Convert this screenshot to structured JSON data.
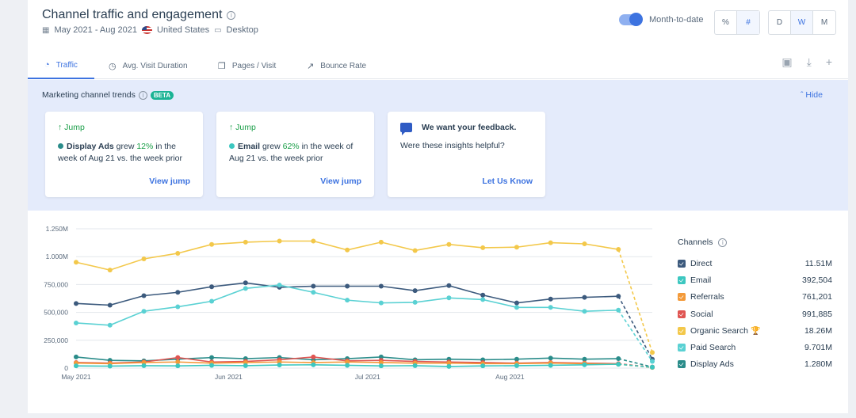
{
  "header": {
    "title": "Channel traffic and engagement",
    "date_range": "May 2021 - Aug 2021",
    "country": "United States",
    "device": "Desktop",
    "toggle_label": "Month-to-date",
    "units": [
      "%",
      "#"
    ],
    "active_unit": "#",
    "granularity": [
      "D",
      "W",
      "M"
    ],
    "active_granularity": "W"
  },
  "tabs": [
    {
      "label": "Traffic",
      "icon": "pie-chart-icon"
    },
    {
      "label": "Avg. Visit Duration",
      "icon": "clock-icon"
    },
    {
      "label": "Pages / Visit",
      "icon": "pages-icon"
    },
    {
      "label": "Bounce Rate",
      "icon": "bounce-icon"
    }
  ],
  "insights": {
    "title": "Marketing channel trends",
    "badge": "BETA",
    "hide_label": "Hide",
    "cards": [
      {
        "type": "Jump",
        "channel": "Display Ads",
        "verb": "grew",
        "pct": "12%",
        "rest": "in the week of Aug 21 vs. the week prior",
        "link": "View jump",
        "color": "#2a8c8a"
      },
      {
        "type": "Jump",
        "channel": "Email",
        "verb": "grew",
        "pct": "62%",
        "rest": "in the week of Aug 21 vs. the week prior",
        "link": "View jump",
        "color": "#3cc7c0"
      }
    ],
    "feedback": {
      "title": "We want your feedback.",
      "question": "Were these insights helpful?",
      "link": "Let Us Know"
    }
  },
  "legend": {
    "title": "Channels",
    "items": [
      {
        "name": "Direct",
        "value": "11.51M",
        "color": "#3c5a7d"
      },
      {
        "name": "Email",
        "value": "392,504",
        "color": "#3cc7c0"
      },
      {
        "name": "Referrals",
        "value": "761,201",
        "color": "#f39a3a"
      },
      {
        "name": "Social",
        "value": "991,885",
        "color": "#e05552"
      },
      {
        "name": "Organic Search",
        "value": "18.26M",
        "color": "#f3c84a"
      },
      {
        "name": "Paid Search",
        "value": "9.701M",
        "color": "#5ad1d3"
      },
      {
        "name": "Display Ads",
        "value": "1.280M",
        "color": "#2a8c8a"
      }
    ]
  },
  "chart_data": {
    "type": "line",
    "y_ticks": [
      "0",
      "250,000",
      "500,000",
      "750,000",
      "1.000M",
      "1.250M"
    ],
    "ylim": [
      0,
      1250000
    ],
    "x_labels": [
      "May 2021",
      "Jun 2021",
      "Jul 2021",
      "Aug 2021"
    ],
    "x_label_weeks": [
      0,
      4.5,
      8.6,
      12.8
    ],
    "weeks": 17,
    "projected_last": true,
    "series": [
      {
        "name": "Organic Search",
        "color": "#f3c84a",
        "values": [
          950000,
          880000,
          980000,
          1030000,
          1110000,
          1130000,
          1140000,
          1140000,
          1060000,
          1130000,
          1055000,
          1110000,
          1080000,
          1085000,
          1125000,
          1115000,
          1065000,
          140000
        ]
      },
      {
        "name": "Direct",
        "color": "#3c5a7d",
        "values": [
          580000,
          565000,
          650000,
          680000,
          730000,
          765000,
          725000,
          735000,
          735000,
          735000,
          695000,
          740000,
          655000,
          585000,
          620000,
          635000,
          645000,
          80000
        ]
      },
      {
        "name": "Paid Search",
        "color": "#5ad1d3",
        "values": [
          405000,
          385000,
          510000,
          550000,
          600000,
          715000,
          745000,
          680000,
          610000,
          585000,
          590000,
          630000,
          615000,
          545000,
          545000,
          510000,
          520000,
          60000
        ]
      },
      {
        "name": "Display Ads",
        "color": "#2a8c8a",
        "values": [
          100000,
          70000,
          65000,
          80000,
          95000,
          85000,
          95000,
          75000,
          85000,
          100000,
          75000,
          80000,
          75000,
          80000,
          90000,
          80000,
          85000,
          10000
        ]
      },
      {
        "name": "Social",
        "color": "#e05552",
        "values": [
          50000,
          45000,
          55000,
          95000,
          55000,
          60000,
          75000,
          100000,
          65000,
          70000,
          60000,
          55000,
          50000,
          45000,
          50000,
          45000,
          40000,
          8000
        ]
      },
      {
        "name": "Referrals",
        "color": "#f39a3a",
        "values": [
          45000,
          40000,
          50000,
          55000,
          45000,
          50000,
          55000,
          50000,
          55000,
          50000,
          45000,
          45000,
          40000,
          40000,
          45000,
          40000,
          35000,
          6000
        ]
      },
      {
        "name": "Email",
        "color": "#3cc7c0",
        "values": [
          20000,
          18000,
          22000,
          20000,
          25000,
          22000,
          28000,
          30000,
          25000,
          20000,
          22000,
          15000,
          20000,
          22000,
          25000,
          30000,
          35000,
          8000
        ]
      }
    ]
  }
}
